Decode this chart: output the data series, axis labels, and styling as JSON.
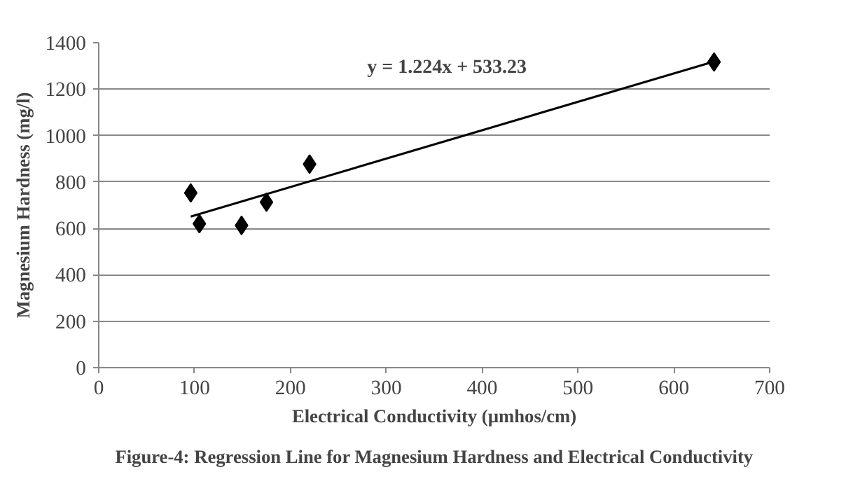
{
  "chart_data": {
    "type": "scatter",
    "xlabel": "Electrical Conductivity (µmhos/cm)",
    "ylabel": "Magnesium Hardness (mg/l)",
    "series": [
      {
        "color": "#000000",
        "marker": "diamond",
        "x": [
          96,
          105,
          149,
          175,
          220,
          642
        ],
        "values": [
          753,
          620,
          613,
          713,
          877,
          1317
        ]
      },
      {
        "type": "line",
        "color": "#000000",
        "marker": "none",
        "line_style": "solid",
        "x": [
          96,
          642
        ],
        "values": [
          651,
          1319
        ]
      }
    ],
    "xlim": [
      0,
      700
    ],
    "xticks": [
      0,
      100,
      200,
      300,
      400,
      500,
      600,
      700
    ],
    "ylim": [
      0,
      1400
    ],
    "yticks": [
      0,
      200,
      400,
      600,
      800,
      1000,
      1200,
      1400
    ],
    "grid": "y",
    "annotations": [
      "y = 1.224x + 533.23",
      "Figure-4: Regression Line for Magnesium Hardness and Electrical Conductivity"
    ]
  }
}
